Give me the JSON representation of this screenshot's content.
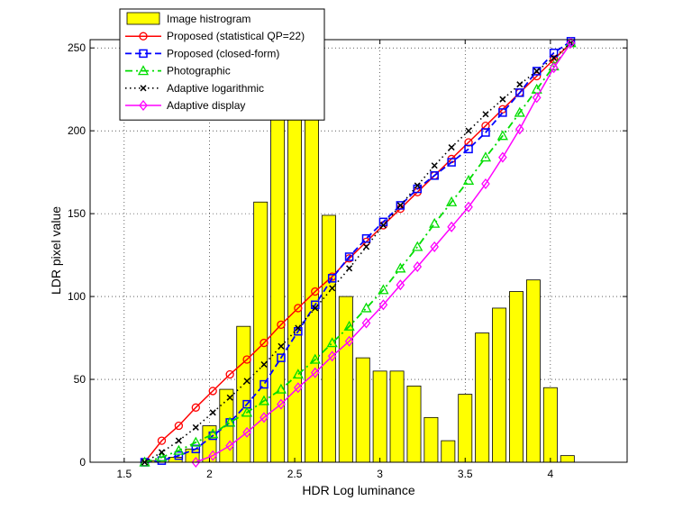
{
  "chart_data": {
    "type": "line",
    "title": "",
    "xlabel": "HDR Log luminance",
    "ylabel": "LDR pixel value",
    "xlim": [
      1.3,
      4.45
    ],
    "ylim": [
      0,
      255
    ],
    "xticks": [
      1.5,
      2,
      2.5,
      3,
      3.5,
      4
    ],
    "xtick_labels": [
      "1.5",
      "2",
      "2.5",
      "3",
      "3.5",
      "4"
    ],
    "yticks": [
      0,
      50,
      100,
      150,
      200,
      250
    ],
    "ytick_labels": [
      "0",
      "50",
      "100",
      "150",
      "200",
      "250"
    ],
    "grid": true,
    "legend_position": "top-left",
    "histogram": {
      "name": "Image histrogram",
      "color": "#ffff00",
      "edge_color": "#000000",
      "bar_width": 0.08,
      "x": [
        1.6,
        1.7,
        1.8,
        1.9,
        2.0,
        2.1,
        2.2,
        2.3,
        2.4,
        2.5,
        2.6,
        2.7,
        2.8,
        2.9,
        3.0,
        3.1,
        3.2,
        3.3,
        3.4,
        3.5,
        3.6,
        3.7,
        3.8,
        3.9,
        4.0,
        4.1
      ],
      "values": [
        0,
        1,
        3,
        8,
        22,
        44,
        82,
        157,
        210,
        210,
        208,
        149,
        100,
        63,
        55,
        55,
        46,
        27,
        13,
        41,
        78,
        93,
        103,
        110,
        45,
        4
      ]
    },
    "series": [
      {
        "name": "Proposed (statistical QP=22)",
        "color": "#ff0000",
        "linestyle": "solid",
        "marker": "circle",
        "x": [
          1.62,
          1.72,
          1.82,
          1.92,
          2.02,
          2.12,
          2.22,
          2.32,
          2.42,
          2.52,
          2.62,
          2.72,
          2.82,
          2.92,
          3.02,
          3.12,
          3.22,
          3.32,
          3.42,
          3.52,
          3.62,
          3.72,
          3.82,
          3.92,
          4.02,
          4.12
        ],
        "y": [
          0,
          13,
          22,
          33,
          43,
          53,
          62,
          72,
          83,
          93,
          103,
          112,
          123,
          133,
          143,
          153,
          163,
          173,
          183,
          193,
          203,
          213,
          223,
          233,
          243,
          253
        ]
      },
      {
        "name": "Proposed (closed-form)",
        "color": "#0000ff",
        "linestyle": "dashed",
        "marker": "square",
        "x": [
          1.62,
          1.72,
          1.82,
          1.92,
          2.02,
          2.12,
          2.22,
          2.32,
          2.42,
          2.52,
          2.62,
          2.72,
          2.82,
          2.92,
          3.02,
          3.12,
          3.22,
          3.32,
          3.42,
          3.52,
          3.62,
          3.72,
          3.82,
          3.92,
          4.02,
          4.12
        ],
        "y": [
          0,
          1,
          4,
          8,
          16,
          24,
          35,
          47,
          63,
          79,
          95,
          111,
          124,
          135,
          145,
          155,
          165,
          173,
          181,
          189,
          199,
          211,
          223,
          236,
          247,
          254
        ]
      },
      {
        "name": "Photographic",
        "color": "#00dd00",
        "linestyle": "dashdot",
        "marker": "triangle",
        "x": [
          1.62,
          1.72,
          1.82,
          1.92,
          2.02,
          2.12,
          2.22,
          2.32,
          2.42,
          2.52,
          2.62,
          2.72,
          2.82,
          2.92,
          3.02,
          3.12,
          3.22,
          3.32,
          3.42,
          3.52,
          3.62,
          3.72,
          3.82,
          3.92,
          4.02,
          4.12
        ],
        "y": [
          0,
          3,
          7,
          12,
          17,
          24,
          30,
          37,
          44,
          53,
          62,
          72,
          82,
          93,
          104,
          117,
          130,
          144,
          157,
          170,
          184,
          197,
          211,
          225,
          239,
          253
        ]
      },
      {
        "name": "Adaptive logarithmic",
        "color": "#000000",
        "linestyle": "dotted",
        "marker": "x",
        "x": [
          1.62,
          1.72,
          1.82,
          1.92,
          2.02,
          2.12,
          2.22,
          2.32,
          2.42,
          2.52,
          2.62,
          2.72,
          2.82,
          2.92,
          3.02,
          3.12,
          3.22,
          3.32,
          3.42,
          3.52,
          3.62,
          3.72,
          3.82,
          3.92,
          4.02,
          4.12
        ],
        "y": [
          0,
          6,
          13,
          21,
          30,
          39,
          49,
          59,
          70,
          81,
          93,
          105,
          117,
          130,
          143,
          155,
          167,
          179,
          190,
          200,
          210,
          219,
          228,
          236,
          244,
          253
        ]
      },
      {
        "name": "Adaptive display",
        "color": "#ff00ff",
        "linestyle": "solid",
        "marker": "diamond",
        "x": [
          1.92,
          2.02,
          2.12,
          2.22,
          2.32,
          2.42,
          2.52,
          2.62,
          2.72,
          2.82,
          2.92,
          3.02,
          3.12,
          3.22,
          3.32,
          3.42,
          3.52,
          3.62,
          3.72,
          3.82,
          3.92,
          4.02,
          4.12
        ],
        "y": [
          0,
          4,
          10,
          18,
          27,
          35,
          45,
          54,
          64,
          73,
          84,
          95,
          107,
          118,
          130,
          142,
          154,
          168,
          184,
          201,
          220,
          238,
          253
        ]
      }
    ]
  }
}
